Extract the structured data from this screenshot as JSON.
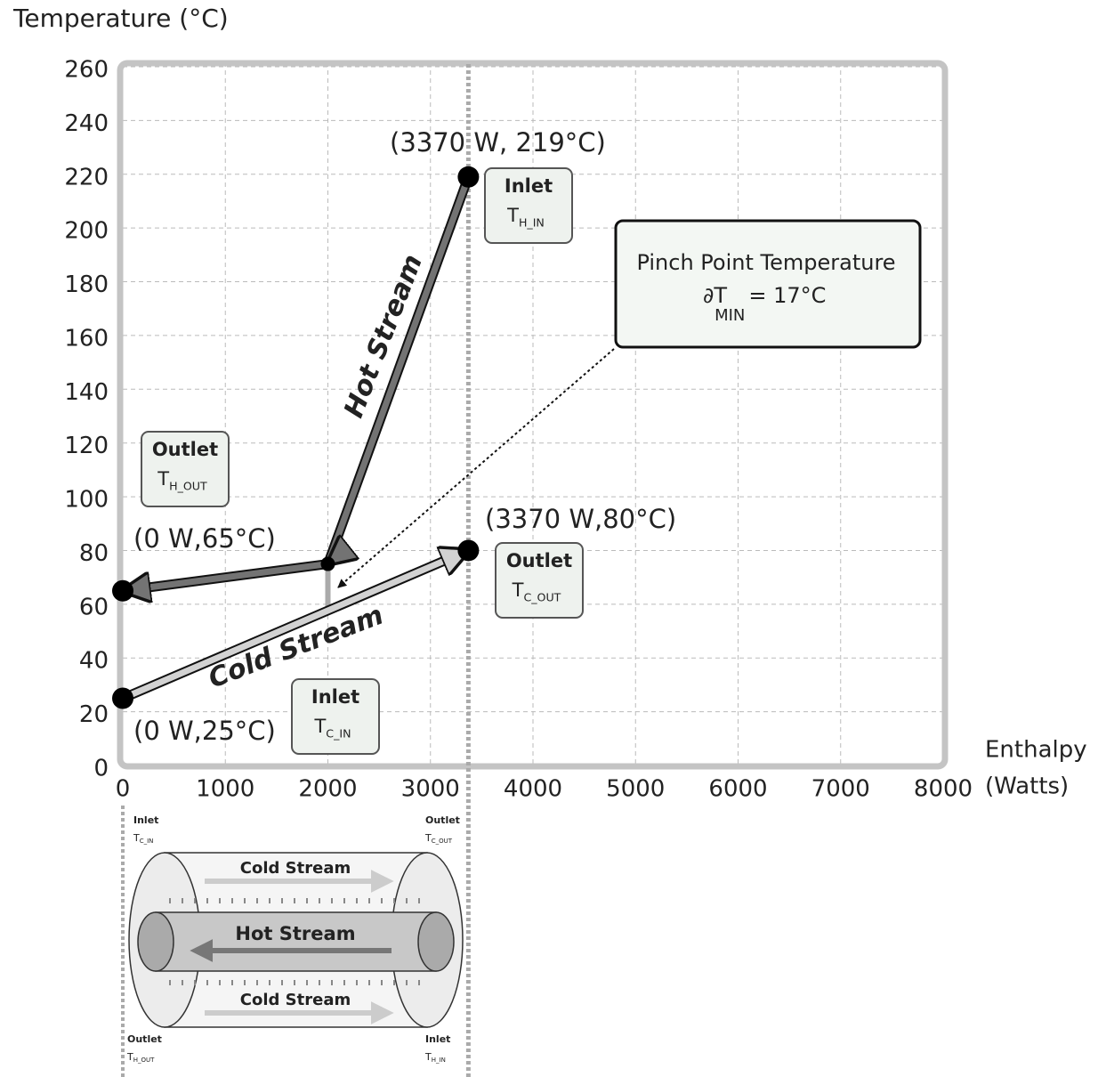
{
  "chart_data": {
    "type": "line",
    "y_label": "Temperature (°C)",
    "x_label": [
      "Enthalpy",
      "(Watts)"
    ],
    "xlim": [
      0,
      8000
    ],
    "ylim": [
      0,
      260
    ],
    "xticks": [
      0,
      1000,
      2000,
      3000,
      4000,
      5000,
      6000,
      7000,
      8000
    ],
    "yticks": [
      0,
      20,
      40,
      60,
      80,
      100,
      120,
      140,
      160,
      180,
      200,
      220,
      240,
      260
    ],
    "grid": true,
    "series": [
      {
        "name": "Hot Stream",
        "color": "#737373",
        "x": [
          3370,
          2000,
          0
        ],
        "values": [
          219,
          75,
          65
        ]
      },
      {
        "name": "Cold Stream",
        "color": "#d2d2d2",
        "x": [
          0,
          3370
        ],
        "values": [
          25,
          80
        ]
      }
    ],
    "point_labels": [
      "(3370 W, 219°C)",
      "(0 W,65°C)",
      "(3370 W,80°C)",
      "(0 W,25°C)"
    ],
    "boxes": [
      {
        "title": "Inlet",
        "symbol": "T",
        "subscript": "H_IN"
      },
      {
        "title": "Outlet",
        "symbol": "T",
        "subscript": "H_OUT"
      },
      {
        "title": "Outlet",
        "symbol": "T",
        "subscript": "C_OUT"
      },
      {
        "title": "Inlet",
        "symbol": "T",
        "subscript": "C_IN"
      }
    ],
    "pinch": {
      "title": "Pinch Point Temperature",
      "symbol": "∂T",
      "subscript": "MIN",
      "value_text": "= 17°C"
    }
  },
  "diagram": {
    "ports": [
      {
        "title": "Inlet",
        "symbol": "T",
        "subscript": "C_IN"
      },
      {
        "title": "Outlet",
        "symbol": "T",
        "subscript": "C_OUT"
      },
      {
        "title": "Outlet",
        "symbol": "T",
        "subscript": "H_OUT"
      },
      {
        "title": "Inlet",
        "symbol": "T",
        "subscript": "H_IN"
      }
    ],
    "streams": [
      "Cold Stream",
      "Hot Stream",
      "Cold Stream"
    ]
  }
}
